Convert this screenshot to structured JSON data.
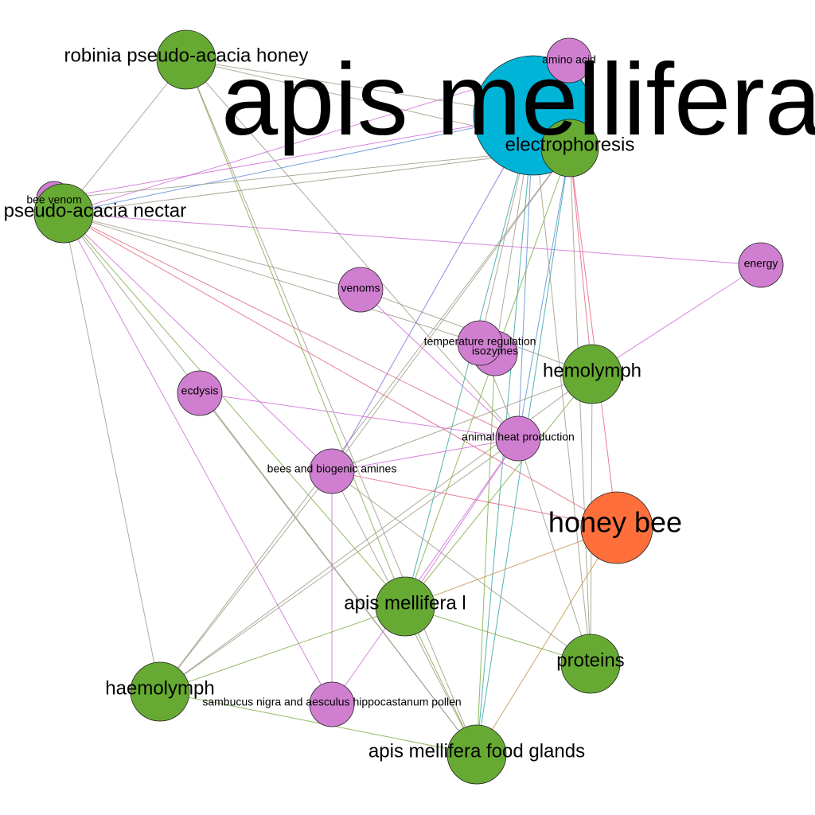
{
  "colors": {
    "green_node": "#66AA33",
    "pink_node": "#D07FD0",
    "cyan_node": "#00B4D8",
    "orange_node": "#FF6F3C",
    "edge_gray": "#A09C88",
    "edge_pink": "#D070D8",
    "edge_green": "#7FB046",
    "edge_red": "#E46A82",
    "edge_blue": "#5E8FD8",
    "edge_teal": "#3AA6A6",
    "edge_purple": "#8A6FE0",
    "edge_brown": "#C8944A"
  },
  "nodes": [
    {
      "id": "apis-mellifera",
      "label": "apis mellifera",
      "color": "cyan_node"
    },
    {
      "id": "electrophoresis",
      "label": "electrophoresis",
      "color": "green_node"
    },
    {
      "id": "amino-acid",
      "label": "amino acid",
      "color": "pink_node"
    },
    {
      "id": "robinia-honey",
      "label": "robinia pseudo-acacia honey",
      "color": "green_node"
    },
    {
      "id": "bee-venom",
      "label": "bee venom",
      "color": "pink_node"
    },
    {
      "id": "robinia-nectar",
      "label": "robinia pseudo-acacia nectar",
      "color": "green_node"
    },
    {
      "id": "energy",
      "label": "energy",
      "color": "pink_node"
    },
    {
      "id": "venoms",
      "label": "venoms",
      "color": "pink_node"
    },
    {
      "id": "isozymes",
      "label": "isozymes",
      "color": "pink_node"
    },
    {
      "id": "temperature-regulation",
      "label": "temperature regulation",
      "color": "pink_node"
    },
    {
      "id": "hemolymph",
      "label": "hemolymph",
      "color": "green_node"
    },
    {
      "id": "ecdysis",
      "label": "ecdysis",
      "color": "pink_node"
    },
    {
      "id": "animal-heat",
      "label": "animal heat production",
      "color": "pink_node"
    },
    {
      "id": "biogenic-amines",
      "label": "bees and biogenic amines",
      "color": "pink_node"
    },
    {
      "id": "honey-bee",
      "label": "honey bee",
      "color": "orange_node"
    },
    {
      "id": "apis-mellifera-l",
      "label": "apis mellifera l",
      "color": "green_node"
    },
    {
      "id": "proteins",
      "label": "proteins",
      "color": "green_node"
    },
    {
      "id": "haemolymph",
      "label": "haemolymph",
      "color": "green_node"
    },
    {
      "id": "pollen",
      "label": "sambucus nigra and aesculus hippocastanum pollen",
      "color": "pink_node"
    },
    {
      "id": "food-glands",
      "label": "apis mellifera food glands",
      "color": "green_node"
    }
  ],
  "edges": [
    [
      "robinia-honey",
      "electrophoresis",
      "edge_gray"
    ],
    [
      "robinia-honey",
      "robinia-nectar",
      "edge_gray"
    ],
    [
      "robinia-honey",
      "apis-mellifera-l",
      "edge_green"
    ],
    [
      "robinia-honey",
      "animal-heat",
      "edge_gray"
    ],
    [
      "robinia-honey",
      "food-glands",
      "edge_gray"
    ],
    [
      "robinia-nectar",
      "apis-mellifera",
      "edge_blue"
    ],
    [
      "robinia-nectar",
      "amino-acid",
      "edge_pink"
    ],
    [
      "robinia-nectar",
      "electrophoresis",
      "edge_gray"
    ],
    [
      "robinia-nectar",
      "energy",
      "edge_pink"
    ],
    [
      "robinia-nectar",
      "venoms",
      "edge_gray"
    ],
    [
      "robinia-nectar",
      "temperature-regulation",
      "edge_gray"
    ],
    [
      "robinia-nectar",
      "animal-heat",
      "edge_red"
    ],
    [
      "robinia-nectar",
      "biogenic-amines",
      "edge_pink"
    ],
    [
      "robinia-nectar",
      "apis-mellifera-l",
      "edge_green"
    ],
    [
      "robinia-nectar",
      "haemolymph",
      "edge_gray"
    ],
    [
      "robinia-nectar",
      "pollen",
      "edge_pink"
    ],
    [
      "robinia-nectar",
      "food-glands",
      "edge_gray"
    ],
    [
      "robinia-nectar",
      "honey-bee",
      "edge_red"
    ],
    [
      "bee-venom",
      "apis-mellifera",
      "edge_pink"
    ],
    [
      "bee-venom",
      "electrophoresis",
      "edge_gray"
    ],
    [
      "electrophoresis",
      "biogenic-amines",
      "edge_gray"
    ],
    [
      "electrophoresis",
      "apis-mellifera-l",
      "edge_green"
    ],
    [
      "electrophoresis",
      "food-glands",
      "edge_teal"
    ],
    [
      "electrophoresis",
      "hemolymph",
      "edge_red"
    ],
    [
      "electrophoresis",
      "proteins",
      "edge_gray"
    ],
    [
      "electrophoresis",
      "honey-bee",
      "edge_red"
    ],
    [
      "electrophoresis",
      "haemolymph",
      "edge_gray"
    ],
    [
      "electrophoresis",
      "animal-heat",
      "edge_blue"
    ],
    [
      "apis-mellifera",
      "biogenic-amines",
      "edge_purple"
    ],
    [
      "apis-mellifera",
      "apis-mellifera-l",
      "edge_teal"
    ],
    [
      "apis-mellifera",
      "food-glands",
      "edge_teal"
    ],
    [
      "apis-mellifera",
      "animal-heat",
      "edge_blue"
    ],
    [
      "apis-mellifera",
      "isozymes",
      "edge_gray"
    ],
    [
      "apis-mellifera",
      "temperature-regulation",
      "edge_gray"
    ],
    [
      "apis-mellifera",
      "robinia-honey",
      "edge_gray"
    ],
    [
      "energy",
      "hemolymph",
      "edge_pink"
    ],
    [
      "venoms",
      "animal-heat",
      "edge_pink"
    ],
    [
      "venoms",
      "hemolymph",
      "edge_gray"
    ],
    [
      "temperature-regulation",
      "animal-heat",
      "edge_gray"
    ],
    [
      "isozymes",
      "food-glands",
      "edge_green"
    ],
    [
      "hemolymph",
      "biogenic-amines",
      "edge_gray"
    ],
    [
      "hemolymph",
      "apis-mellifera-l",
      "edge_green"
    ],
    [
      "hemolymph",
      "haemolymph",
      "edge_gray"
    ],
    [
      "hemolymph",
      "proteins",
      "edge_gray"
    ],
    [
      "ecdysis",
      "animal-heat",
      "edge_pink"
    ],
    [
      "ecdysis",
      "food-glands",
      "edge_gray"
    ],
    [
      "animal-heat",
      "biogenic-amines",
      "edge_pink"
    ],
    [
      "animal-heat",
      "apis-mellifera-l",
      "edge_pink"
    ],
    [
      "animal-heat",
      "haemolymph",
      "edge_gray"
    ],
    [
      "animal-heat",
      "pollen",
      "edge_pink"
    ],
    [
      "animal-heat",
      "proteins",
      "edge_gray"
    ],
    [
      "biogenic-amines",
      "honey-bee",
      "edge_red"
    ],
    [
      "biogenic-amines",
      "haemolymph",
      "edge_gray"
    ],
    [
      "biogenic-amines",
      "pollen",
      "edge_pink"
    ],
    [
      "biogenic-amines",
      "proteins",
      "edge_gray"
    ],
    [
      "biogenic-amines",
      "food-glands",
      "edge_gray"
    ],
    [
      "honey-bee",
      "apis-mellifera-l",
      "edge_brown"
    ],
    [
      "honey-bee",
      "food-glands",
      "edge_brown"
    ],
    [
      "apis-mellifera-l",
      "haemolymph",
      "edge_green"
    ],
    [
      "apis-mellifera-l",
      "proteins",
      "edge_green"
    ],
    [
      "apis-mellifera-l",
      "food-glands",
      "edge_green"
    ],
    [
      "haemolymph",
      "food-glands",
      "edge_green"
    ],
    [
      "apis-mellifera",
      "proteins",
      "edge_gray"
    ]
  ]
}
